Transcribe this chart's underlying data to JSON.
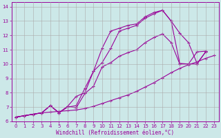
{
  "xlabel": "Windchill (Refroidissement éolien,°C)",
  "background_color": "#cce8e8",
  "grid_color": "#aaaaaa",
  "line_color": "#990099",
  "xlim": [
    -0.5,
    23.5
  ],
  "ylim": [
    6,
    14.3
  ],
  "xticks": [
    0,
    1,
    2,
    3,
    4,
    5,
    6,
    7,
    8,
    9,
    10,
    11,
    12,
    13,
    14,
    15,
    16,
    17,
    18,
    19,
    20,
    21,
    22,
    23
  ],
  "yticks": [
    6,
    7,
    8,
    9,
    10,
    11,
    12,
    13,
    14
  ],
  "series_x": [
    [
      0,
      1,
      2,
      3,
      4,
      5,
      6,
      7,
      8,
      9,
      10,
      11,
      12,
      13,
      14,
      15,
      16,
      17,
      18,
      19,
      20,
      21,
      22
    ],
    [
      0,
      1,
      2,
      3,
      4,
      5,
      6,
      7,
      8,
      9,
      10,
      11,
      12,
      13,
      14,
      15,
      16,
      17,
      18,
      19,
      20,
      21,
      22
    ],
    [
      0,
      1,
      2,
      3,
      4,
      5,
      6,
      7,
      8,
      9,
      10,
      11,
      12,
      13,
      14,
      15,
      16,
      17,
      18,
      19,
      20,
      21,
      22
    ],
    [
      0,
      1,
      2,
      3,
      4,
      5,
      6,
      7,
      8,
      9,
      10,
      11,
      12,
      13,
      14,
      15,
      16,
      17,
      18,
      19,
      20,
      21,
      22,
      23
    ]
  ],
  "series_y": [
    [
      6.3,
      6.4,
      6.5,
      6.6,
      7.1,
      6.6,
      7.0,
      7.1,
      8.3,
      9.5,
      11.1,
      12.3,
      12.5,
      12.7,
      12.8,
      13.3,
      13.6,
      13.75,
      13.0,
      10.05,
      10.0,
      10.85,
      10.9
    ],
    [
      6.3,
      6.4,
      6.5,
      6.6,
      7.1,
      6.6,
      7.05,
      7.75,
      8.0,
      9.5,
      10.1,
      11.1,
      12.3,
      12.5,
      12.7,
      13.2,
      13.5,
      13.75,
      13.0,
      12.15,
      11.5,
      10.05,
      10.85
    ],
    [
      6.3,
      6.4,
      6.5,
      6.6,
      7.1,
      6.6,
      7.05,
      6.95,
      7.95,
      8.45,
      9.8,
      10.1,
      10.55,
      10.8,
      11.0,
      11.5,
      11.85,
      12.1,
      11.5,
      10.0,
      10.0,
      10.0,
      10.85
    ],
    [
      6.3,
      6.4,
      6.5,
      6.6,
      6.65,
      6.7,
      6.75,
      6.8,
      6.9,
      7.05,
      7.25,
      7.45,
      7.65,
      7.85,
      8.1,
      8.4,
      8.7,
      9.05,
      9.4,
      9.7,
      9.95,
      10.15,
      10.4,
      10.6
    ]
  ],
  "marker": "+"
}
